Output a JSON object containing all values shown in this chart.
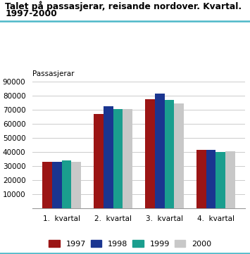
{
  "title_line1": "Talet på passasjerar, reisande nordover. Kvartal.",
  "title_line2": "1997-2000",
  "ylabel": "Passasjerar",
  "categories": [
    "1.  kvartal",
    "2.  kvartal",
    "3.  kvartal",
    "4.  kvartal"
  ],
  "series": {
    "1997": [
      33000,
      67000,
      77500,
      41500
    ],
    "1998": [
      33000,
      72500,
      81500,
      41500
    ],
    "1999": [
      34000,
      70500,
      77000,
      40000
    ],
    "2000": [
      33000,
      70500,
      74500,
      40500
    ]
  },
  "colors": {
    "1997": "#9b1515",
    "1998": "#1a3590",
    "1999": "#1a9e8e",
    "2000": "#c8c8c8"
  },
  "ylim": [
    0,
    90000
  ],
  "yticks": [
    0,
    10000,
    20000,
    30000,
    40000,
    50000,
    60000,
    70000,
    80000,
    90000
  ],
  "legend_labels": [
    "1997",
    "1998",
    "1999",
    "2000"
  ],
  "background_color": "#ffffff",
  "grid_color": "#cccccc",
  "accent_color": "#4db8c8"
}
